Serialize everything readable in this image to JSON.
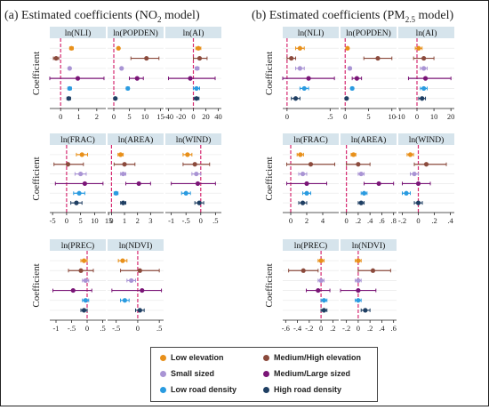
{
  "panels_title": {
    "a": "(a) Estimated coefficients (NO",
    "a_sub": "2",
    "a_tail": " model)",
    "b": "(b) Estimated coefficients (PM",
    "b_sub": "2.5",
    "b_tail": " model)"
  },
  "ylabel": "Coefficient",
  "legend": [
    {
      "name": "Low elevation",
      "color": "#e8901a"
    },
    {
      "name": "Medium/High elevation",
      "color": "#8b4a3c"
    },
    {
      "name": "Small sized",
      "color": "#a994d4"
    },
    {
      "name": "Medium/Large sized",
      "color": "#7a1577"
    },
    {
      "name": "Low road density",
      "color": "#2a9be0"
    },
    {
      "name": "High road density",
      "color": "#1f3f63"
    }
  ],
  "colors": {
    "strip": "#d6e4ec",
    "zero_line": "#d62870",
    "estimate_line": "#e8901a",
    "frame": "#222222"
  },
  "chart_data": [
    {
      "type": "coefficient-plot",
      "model": "NO2",
      "panels": [
        {
          "label": "ln(NLI)",
          "xlim": [
            -0.6,
            2.5
          ],
          "ticks": [
            0,
            1,
            2
          ],
          "points": [
            {
              "v": 0.6,
              "lo": 0.5,
              "hi": 0.7
            },
            {
              "v": -0.25,
              "lo": -0.4,
              "hi": -0.1
            },
            {
              "v": 0.5,
              "lo": 0.45,
              "hi": 0.55
            },
            {
              "v": 0.95,
              "lo": -0.6,
              "hi": 2.4
            },
            {
              "v": 0.5,
              "lo": 0.4,
              "hi": 0.6
            },
            {
              "v": 0.45,
              "lo": 0.35,
              "hi": 0.55
            }
          ]
        },
        {
          "label": "ln(POPDEN)",
          "xlim": [
            -2,
            16
          ],
          "ticks": [
            0,
            5,
            10,
            15
          ],
          "points": [
            {
              "v": 1.5,
              "lo": 1.2,
              "hi": 1.8
            },
            {
              "v": 10.5,
              "lo": 5.5,
              "hi": 14.5
            },
            {
              "v": 2.5,
              "lo": 2.2,
              "hi": 2.8
            },
            {
              "v": 7.5,
              "lo": 5.0,
              "hi": 9.5
            },
            {
              "v": 4.5,
              "lo": 4.0,
              "hi": 5.0
            },
            {
              "v": 0.5,
              "lo": 0.2,
              "hi": 0.8
            }
          ]
        },
        {
          "label": "ln(AI)",
          "xlim": [
            -45,
            45
          ],
          "ticks": [
            -40,
            -20,
            0,
            20,
            40
          ],
          "points": [
            {
              "v": 8,
              "lo": 4,
              "hi": 12
            },
            {
              "v": 10,
              "lo": 0,
              "hi": 22
            },
            {
              "v": 6,
              "lo": 3,
              "hi": 9
            },
            {
              "v": -5,
              "lo": -40,
              "hi": 35
            },
            {
              "v": 5,
              "lo": 0,
              "hi": 10
            },
            {
              "v": 5,
              "lo": 1,
              "hi": 9
            }
          ]
        }
      ]
    },
    {
      "type": "coefficient-plot",
      "model": "NO2",
      "panels": [
        {
          "label": "ln(FRAC)",
          "xlim": [
            -6,
            14
          ],
          "ticks": [
            -5,
            0,
            5,
            10,
            15
          ],
          "points": [
            {
              "v": 5.5,
              "lo": 3.5,
              "hi": 7.5
            },
            {
              "v": 0.5,
              "lo": -4.5,
              "hi": 6
            },
            {
              "v": 5,
              "lo": 3,
              "hi": 7
            },
            {
              "v": 6.5,
              "lo": -4,
              "hi": 13
            },
            {
              "v": 4.5,
              "lo": 2.5,
              "hi": 6.5
            },
            {
              "v": 3.5,
              "lo": 1.5,
              "hi": 5.5
            }
          ]
        },
        {
          "label": "ln(AREA)",
          "xlim": [
            -0.3,
            4
          ],
          "ticks": [
            0,
            1,
            2,
            3
          ],
          "points": [
            {
              "v": 0.7,
              "lo": 0.5,
              "hi": 0.9
            },
            {
              "v": 1.0,
              "lo": 0.2,
              "hi": 1.8
            },
            {
              "v": 0.9,
              "lo": 0.7,
              "hi": 1.1
            },
            {
              "v": 2.1,
              "lo": 1.1,
              "hi": 3.0
            },
            {
              "v": 0.35,
              "lo": 0.2,
              "hi": 0.5
            },
            {
              "v": 0.9,
              "lo": 0.7,
              "hi": 1.1
            }
          ]
        },
        {
          "label": "ln(WIND)",
          "xlim": [
            -1.2,
            0.7
          ],
          "ticks": [
            -1,
            -0.5,
            0,
            0.5
          ],
          "points": [
            {
              "v": -0.45,
              "lo": -0.6,
              "hi": -0.3
            },
            {
              "v": -0.2,
              "lo": -0.6,
              "hi": 0.3
            },
            {
              "v": -0.15,
              "lo": -0.3,
              "hi": 0.0
            },
            {
              "v": -0.1,
              "lo": -1.0,
              "hi": 0.5
            },
            {
              "v": -0.5,
              "lo": -0.65,
              "hi": -0.35
            },
            {
              "v": -0.05,
              "lo": -0.2,
              "hi": 0.1
            }
          ]
        }
      ]
    },
    {
      "type": "coefficient-plot",
      "model": "NO2",
      "panels": [
        {
          "label": "ln(PREC)",
          "xlim": [
            -1.2,
            0.6
          ],
          "ticks": [
            -1,
            -0.5,
            0,
            0.5
          ],
          "points": [
            {
              "v": -0.1,
              "lo": -0.2,
              "hi": 0.0
            },
            {
              "v": -0.2,
              "lo": -0.6,
              "hi": 0.2
            },
            {
              "v": -0.05,
              "lo": -0.15,
              "hi": 0.05
            },
            {
              "v": -0.45,
              "lo": -1.1,
              "hi": 0.15
            },
            {
              "v": -0.05,
              "lo": -0.15,
              "hi": 0.05
            },
            {
              "v": -0.1,
              "lo": -0.2,
              "hi": 0.0
            }
          ]
        },
        {
          "label": "ln(NDVI)",
          "xlim": [
            -0.7,
            0.6
          ],
          "ticks": [
            -0.5,
            0,
            0.5
          ],
          "points": [
            {
              "v": -0.35,
              "lo": -0.45,
              "hi": -0.25
            },
            {
              "v": 0.05,
              "lo": -0.4,
              "hi": 0.5
            },
            {
              "v": -0.15,
              "lo": -0.25,
              "hi": -0.05
            },
            {
              "v": 0.1,
              "lo": -0.6,
              "hi": 0.55
            },
            {
              "v": -0.3,
              "lo": -0.4,
              "hi": -0.2
            },
            {
              "v": 0.05,
              "lo": -0.05,
              "hi": 0.15
            }
          ]
        }
      ]
    },
    {
      "type": "coefficient-plot",
      "model": "PM2.5",
      "panels": [
        {
          "label": "ln(NLI)",
          "xlim": [
            -0.05,
            0.6
          ],
          "ticks": [
            0,
            0.5
          ],
          "points": [
            {
              "v": 0.15,
              "lo": 0.1,
              "hi": 0.2
            },
            {
              "v": 0.05,
              "lo": 0.0,
              "hi": 0.1
            },
            {
              "v": 0.15,
              "lo": 0.1,
              "hi": 0.2
            },
            {
              "v": 0.25,
              "lo": -0.05,
              "hi": 0.55
            },
            {
              "v": 0.2,
              "lo": 0.15,
              "hi": 0.25
            },
            {
              "v": 0.1,
              "lo": 0.05,
              "hi": 0.15
            }
          ]
        },
        {
          "label": "ln(POPDEN)",
          "xlim": [
            -1,
            11
          ],
          "ticks": [
            0,
            5,
            10
          ],
          "points": [
            {
              "v": 0.5,
              "lo": 0.3,
              "hi": 0.7
            },
            {
              "v": 7.0,
              "lo": 4.0,
              "hi": 10.0
            },
            {
              "v": 1.0,
              "lo": 0.7,
              "hi": 1.3
            },
            {
              "v": 2.5,
              "lo": 1.5,
              "hi": 3.5
            },
            {
              "v": 1.5,
              "lo": 1.2,
              "hi": 1.8
            },
            {
              "v": 0.3,
              "lo": 0.1,
              "hi": 0.5
            }
          ]
        },
        {
          "label": "ln(AI)",
          "xlim": [
            -11,
            22
          ],
          "ticks": [
            -10,
            0,
            10,
            20
          ],
          "points": [
            {
              "v": 1,
              "lo": -1,
              "hi": 3
            },
            {
              "v": 4,
              "lo": -2,
              "hi": 10
            },
            {
              "v": 4,
              "lo": 2,
              "hi": 6
            },
            {
              "v": 5,
              "lo": -5,
              "hi": 20
            },
            {
              "v": 4,
              "lo": 2,
              "hi": 6
            },
            {
              "v": 3,
              "lo": 1,
              "hi": 5
            }
          ]
        }
      ]
    },
    {
      "type": "coefficient-plot",
      "model": "PM2.5",
      "panels": [
        {
          "label": "ln(FRAC)",
          "xlim": [
            -1,
            6
          ],
          "ticks": [
            0,
            2,
            4
          ],
          "points": [
            {
              "v": 1.2,
              "lo": 0.8,
              "hi": 1.6
            },
            {
              "v": 2.5,
              "lo": -0.5,
              "hi": 5.5
            },
            {
              "v": 1.5,
              "lo": 1.0,
              "hi": 2.0
            },
            {
              "v": 2.0,
              "lo": -0.5,
              "hi": 4.5
            },
            {
              "v": 2.0,
              "lo": 1.5,
              "hi": 2.5
            },
            {
              "v": 1.5,
              "lo": 1.0,
              "hi": 2.0
            }
          ]
        },
        {
          "label": "ln(AREA)",
          "xlim": [
            -0.1,
            0.85
          ],
          "ticks": [
            0,
            0.2,
            0.4,
            0.6,
            0.8
          ],
          "points": [
            {
              "v": 0.12,
              "lo": 0.08,
              "hi": 0.16
            },
            {
              "v": 0.2,
              "lo": 0.0,
              "hi": 0.4
            },
            {
              "v": 0.25,
              "lo": 0.2,
              "hi": 0.3
            },
            {
              "v": 0.55,
              "lo": 0.3,
              "hi": 0.8
            },
            {
              "v": 0.3,
              "lo": 0.25,
              "hi": 0.35
            },
            {
              "v": 0.25,
              "lo": 0.2,
              "hi": 0.3
            }
          ]
        },
        {
          "label": "ln(WIND)",
          "xlim": [
            -0.25,
            0.45
          ],
          "ticks": [
            -0.2,
            0,
            0.2,
            0.4
          ],
          "points": [
            {
              "v": -0.1,
              "lo": -0.14,
              "hi": -0.06
            },
            {
              "v": 0.1,
              "lo": -0.05,
              "hi": 0.35
            },
            {
              "v": -0.05,
              "lo": -0.1,
              "hi": 0.0
            },
            {
              "v": 0.0,
              "lo": -0.2,
              "hi": 0.15
            },
            {
              "v": -0.15,
              "lo": -0.2,
              "hi": -0.1
            },
            {
              "v": 0.0,
              "lo": -0.05,
              "hi": 0.05
            }
          ]
        }
      ]
    },
    {
      "type": "coefficient-plot",
      "model": "PM2.5",
      "panels": [
        {
          "label": "ln(PREC)",
          "xlim": [
            -0.65,
            0.3
          ],
          "ticks": [
            -0.6,
            -0.4,
            -0.2,
            0,
            0.2
          ],
          "points": [
            {
              "v": 0.0,
              "lo": -0.05,
              "hi": 0.05
            },
            {
              "v": -0.3,
              "lo": -0.55,
              "hi": -0.05
            },
            {
              "v": 0.0,
              "lo": -0.05,
              "hi": 0.05
            },
            {
              "v": -0.05,
              "lo": -0.25,
              "hi": 0.15
            },
            {
              "v": 0.05,
              "lo": 0.0,
              "hi": 0.1
            },
            {
              "v": 0.05,
              "lo": 0.0,
              "hi": 0.1
            }
          ]
        },
        {
          "label": "ln(NDVI)",
          "xlim": [
            -0.3,
            0.65
          ],
          "ticks": [
            -0.2,
            0,
            0.2,
            0.4,
            0.6
          ],
          "points": [
            {
              "v": 0.0,
              "lo": -0.05,
              "hi": 0.05
            },
            {
              "v": 0.25,
              "lo": 0.0,
              "hi": 0.55
            },
            {
              "v": 0.0,
              "lo": -0.05,
              "hi": 0.05
            },
            {
              "v": 0.0,
              "lo": -0.3,
              "hi": 0.3
            },
            {
              "v": 0.0,
              "lo": -0.05,
              "hi": 0.05
            },
            {
              "v": 0.12,
              "lo": 0.05,
              "hi": 0.2
            }
          ]
        }
      ]
    }
  ]
}
